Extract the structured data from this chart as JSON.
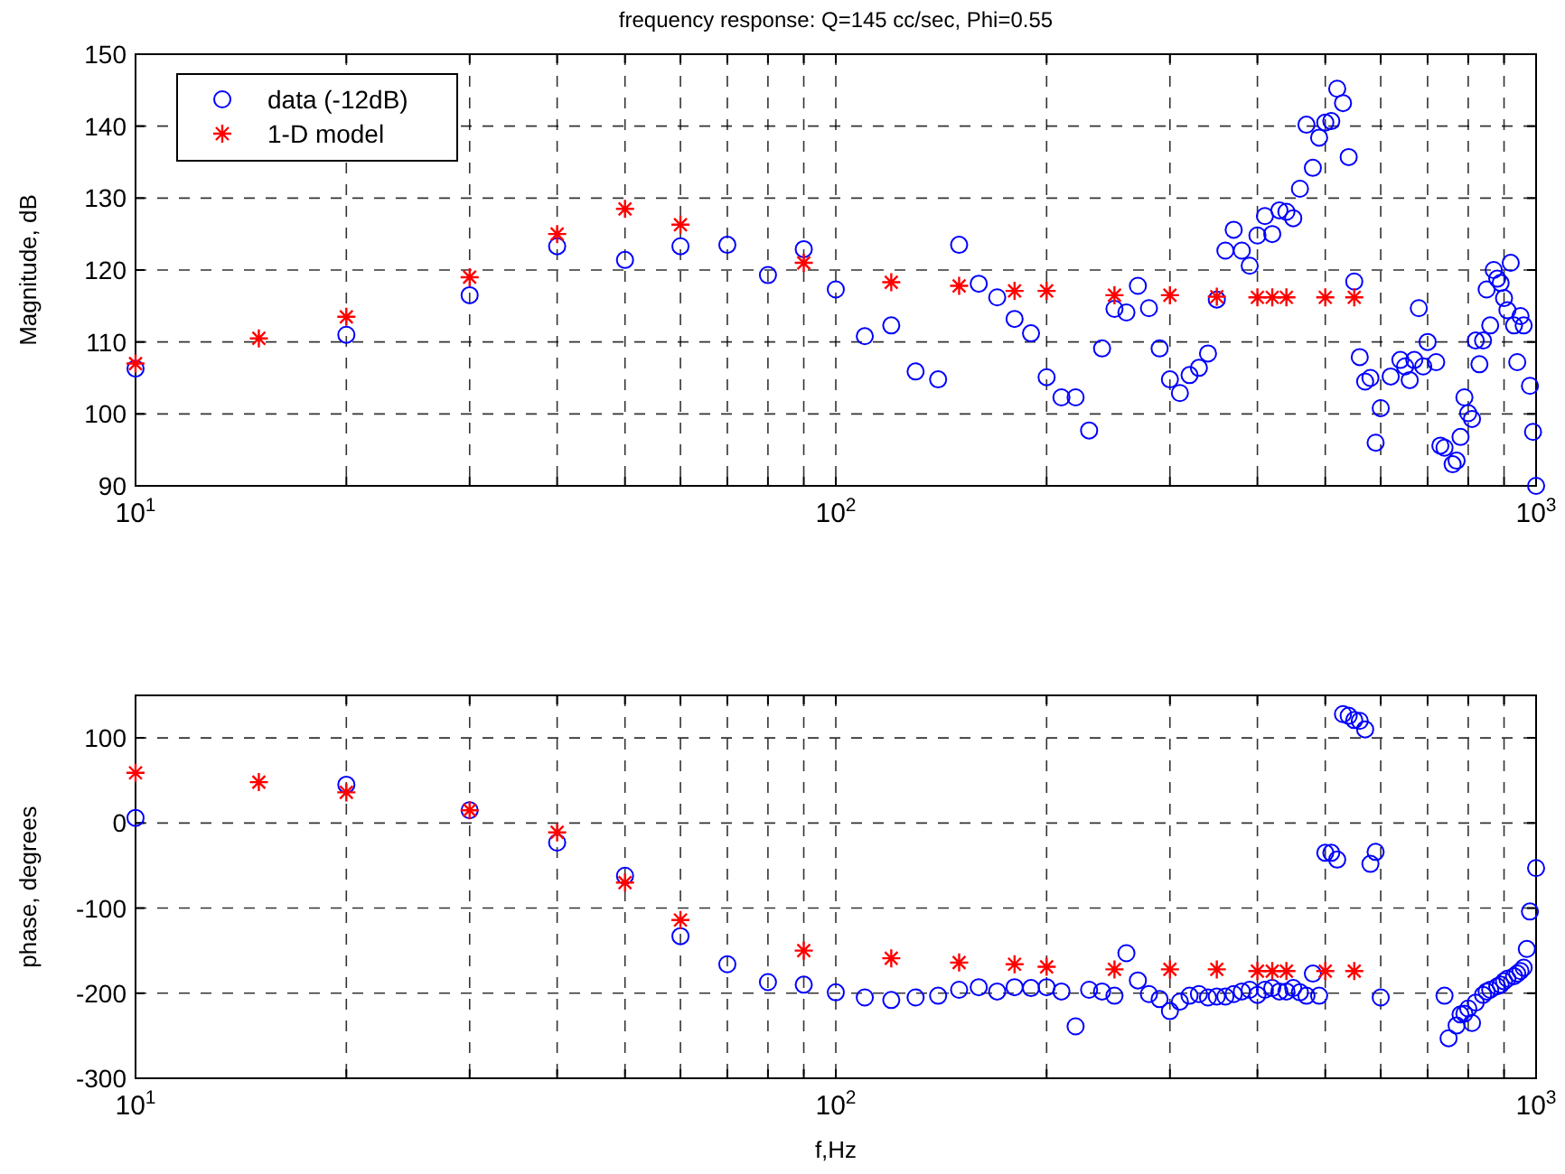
{
  "chart_data": [
    {
      "type": "scatter",
      "title": "frequency response: Q=145 cc/sec, Phi=0.55",
      "ylabel": "Magnitude, dB",
      "log": "x",
      "xlim": [
        10,
        1000
      ],
      "xticks": [
        {
          "value": 10,
          "label": "10$^{1}$"
        },
        {
          "value": 20,
          "label": null
        },
        {
          "value": 30,
          "label": null
        },
        {
          "value": 40,
          "label": null
        },
        {
          "value": 50,
          "label": null
        },
        {
          "value": 60,
          "label": null
        },
        {
          "value": 70,
          "label": null
        },
        {
          "value": 80,
          "label": null
        },
        {
          "value": 90,
          "label": null
        },
        {
          "value": 100,
          "label": "10$^{2}$"
        },
        {
          "value": 200,
          "label": null
        },
        {
          "value": 300,
          "label": null
        },
        {
          "value": 400,
          "label": null
        },
        {
          "value": 500,
          "label": null
        },
        {
          "value": 600,
          "label": null
        },
        {
          "value": 700,
          "label": null
        },
        {
          "value": 800,
          "label": null
        },
        {
          "value": 900,
          "label": null
        },
        {
          "value": 1000,
          "label": "10$^{3}$"
        }
      ],
      "ylim": [
        90,
        150
      ],
      "yticks": [
        90,
        100,
        110,
        120,
        130,
        140,
        150
      ],
      "grid": true,
      "legend": "top left",
      "series": [
        {
          "name": "data (-12dB)",
          "color": "#0000ff",
          "marker": "circle",
          "x": [
            10,
            20,
            30,
            40,
            50,
            60,
            70,
            80,
            90,
            100,
            110,
            120,
            130,
            140,
            150,
            160,
            170,
            180,
            190,
            200,
            210,
            220,
            230,
            240,
            250,
            260,
            270,
            280,
            290,
            300,
            310,
            320,
            330,
            340,
            350,
            360,
            370,
            380,
            390,
            400,
            410,
            420,
            430,
            440,
            450,
            460,
            470,
            480,
            490,
            500,
            510,
            520,
            530,
            540,
            550,
            560,
            570,
            580,
            590,
            600,
            620,
            640,
            650,
            660,
            670,
            680,
            690,
            700,
            720,
            730,
            740,
            760,
            770,
            780,
            790,
            800,
            810,
            820,
            830,
            840,
            850,
            860,
            870,
            880,
            890,
            900,
            910,
            920,
            930,
            940,
            950,
            960,
            980,
            990,
            1000
          ],
          "values": [
            106.3,
            111,
            116.5,
            123.3,
            121.4,
            123.3,
            123.5,
            119.3,
            122.9,
            117.3,
            110.8,
            112.3,
            105.9,
            104.8,
            123.5,
            118.1,
            116.2,
            113.2,
            111.2,
            105.1,
            102.3,
            102.3,
            97.7,
            109.1,
            114.6,
            114.1,
            117.8,
            114.7,
            109.1,
            104.8,
            102.9,
            105.4,
            106.4,
            108.4,
            115.9,
            122.7,
            125.6,
            122.7,
            120.6,
            124.8,
            127.5,
            125.0,
            128.3,
            128.1,
            127.2,
            131.3,
            140.2,
            134.2,
            138.4,
            140.5,
            140.7,
            145.2,
            143.2,
            135.7,
            118.4,
            107.9,
            104.5,
            105.0,
            96.0,
            100.8,
            105.2,
            107.5,
            106.6,
            104.7,
            107.5,
            114.7,
            106.6,
            110.0,
            107.2,
            95.6,
            95.3,
            93.0,
            93.5,
            96.8,
            102.3,
            100.1,
            99.3,
            110.2,
            106.9,
            110.2,
            117.3,
            112.3,
            120.0,
            118.8,
            118.2,
            116.1,
            114.4,
            121.0,
            112.3,
            107.2,
            113.6,
            112.3,
            103.9,
            97.5,
            90.0
          ]
        },
        {
          "name": "1-D model",
          "color": "#ff0000",
          "marker": "cross",
          "x": [
            10,
            15,
            20,
            30,
            40,
            50,
            60,
            90,
            120,
            150,
            180,
            200,
            250,
            300,
            350,
            400,
            420,
            440,
            500,
            550
          ],
          "values": [
            107,
            110.5,
            113.5,
            119,
            125,
            128.5,
            126.3,
            121,
            118.3,
            117.8,
            117.1,
            117.1,
            116.5,
            116.5,
            116.3,
            116.2,
            116.2,
            116.2,
            116.2,
            116.2
          ]
        }
      ]
    },
    {
      "type": "scatter",
      "xlabel": "f,Hz",
      "ylabel": "phase, degrees",
      "log": "x",
      "xlim": [
        10,
        1000
      ],
      "xticks": [
        {
          "value": 10,
          "label": "10$^{1}$"
        },
        {
          "value": 20,
          "label": null
        },
        {
          "value": 30,
          "label": null
        },
        {
          "value": 40,
          "label": null
        },
        {
          "value": 50,
          "label": null
        },
        {
          "value": 60,
          "label": null
        },
        {
          "value": 70,
          "label": null
        },
        {
          "value": 80,
          "label": null
        },
        {
          "value": 90,
          "label": null
        },
        {
          "value": 100,
          "label": "10$^{2}$"
        },
        {
          "value": 200,
          "label": null
        },
        {
          "value": 300,
          "label": null
        },
        {
          "value": 400,
          "label": null
        },
        {
          "value": 500,
          "label": null
        },
        {
          "value": 600,
          "label": null
        },
        {
          "value": 700,
          "label": null
        },
        {
          "value": 800,
          "label": null
        },
        {
          "value": 900,
          "label": null
        },
        {
          "value": 1000,
          "label": "10$^{3}$"
        }
      ],
      "ylim": [
        -300,
        150
      ],
      "yticks": [
        -300,
        -200,
        -100,
        0,
        100
      ],
      "grid": true,
      "series": [
        {
          "color": "#0000ff",
          "marker": "circle",
          "x": [
            10,
            20,
            30,
            40,
            50,
            60,
            70,
            80,
            90,
            100,
            110,
            120,
            130,
            140,
            150,
            160,
            170,
            180,
            190,
            200,
            210,
            220,
            230,
            240,
            250,
            260,
            270,
            280,
            290,
            300,
            310,
            320,
            330,
            340,
            350,
            360,
            370,
            380,
            390,
            400,
            410,
            420,
            430,
            440,
            450,
            460,
            470,
            480,
            490,
            500,
            510,
            520,
            530,
            540,
            550,
            560,
            570,
            580,
            590,
            600,
            740,
            750,
            770,
            780,
            790,
            800,
            810,
            820,
            840,
            850,
            860,
            880,
            890,
            900,
            910,
            930,
            940,
            950,
            960,
            970,
            980,
            1000
          ],
          "values": [
            6,
            45,
            15,
            -23,
            -62,
            -133,
            -166,
            -187,
            -190,
            -199,
            -205,
            -208,
            -205,
            -203,
            -196,
            -193,
            -198,
            -193,
            -194,
            -193,
            -198,
            -239,
            -196,
            -198,
            -203,
            -153,
            -185,
            -201,
            -207,
            -221,
            -210,
            -203,
            -201,
            -205,
            -204,
            -204,
            -201,
            -198,
            -196,
            -202,
            -196,
            -194,
            -198,
            -198,
            -194,
            -199,
            -203,
            -177,
            -203,
            -35,
            -35,
            -43,
            128,
            126,
            121,
            120,
            110,
            -48,
            -34,
            -205,
            -203,
            -253,
            -238,
            -225,
            -224,
            -218,
            -235,
            -211,
            -202,
            -198,
            -196,
            -192,
            -190,
            -186,
            -183,
            -180,
            -177,
            -174,
            -170,
            -148,
            -104,
            -53
          ]
        },
        {
          "color": "#ff0000",
          "marker": "cross",
          "x": [
            10,
            15,
            20,
            30,
            40,
            50,
            60,
            90,
            120,
            150,
            180,
            200,
            250,
            300,
            350,
            400,
            420,
            440,
            500,
            550
          ],
          "values": [
            59,
            48,
            36,
            15,
            -11,
            -70,
            -114,
            -150,
            -159,
            -164,
            -166,
            -169,
            -172,
            -172,
            -172,
            -174,
            -174,
            -174,
            -174,
            -174
          ]
        }
      ]
    }
  ]
}
